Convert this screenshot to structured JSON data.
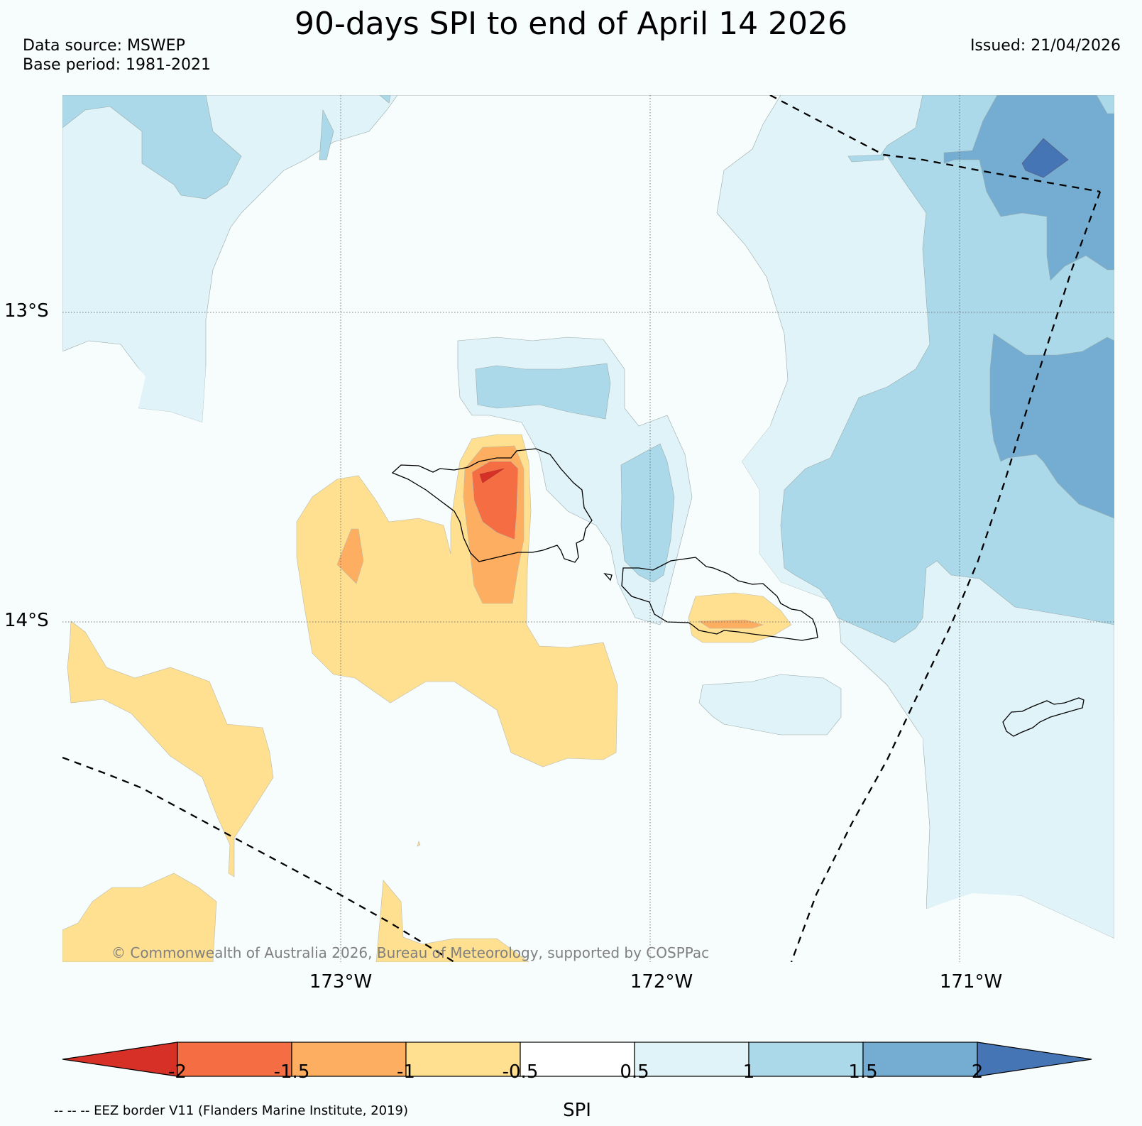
{
  "title": "90-days SPI to end of April 14 2026",
  "data_source": "Data source: MSWEP",
  "base_period": "Base period: 1981-2021",
  "issued": "Issued: 21/04/2026",
  "copyright": "© Commonwealth of Australia 2026, Bureau of Meteorology, supported by COSPPac",
  "map": {
    "lat_labels": [
      "13°S",
      "14°S"
    ],
    "lon_labels": [
      "173°W",
      "172°W",
      "171°W"
    ],
    "region": "Samoa",
    "boundary_style": "dashed"
  },
  "colorbar": {
    "label": "SPI",
    "ticks": [
      "-2",
      "-1.5",
      "-1",
      "-0.5",
      "0.5",
      "1",
      "1.5",
      "2"
    ],
    "classes": [
      {
        "range": "< -2",
        "color": "#d73027"
      },
      {
        "range": "-2 to -1.5",
        "color": "#f46d43"
      },
      {
        "range": "-1.5 to -1",
        "color": "#fdae61"
      },
      {
        "range": "-1 to -0.5",
        "color": "#fee090"
      },
      {
        "range": "-0.5 to 0.5",
        "color": "#ffffff"
      },
      {
        "range": "0.5 to 1",
        "color": "#e0f3f8"
      },
      {
        "range": "1 to 1.5",
        "color": "#abd9e9"
      },
      {
        "range": "1.5 to 2",
        "color": "#74add1"
      },
      {
        "range": "> 2",
        "color": "#4575b4"
      }
    ]
  },
  "legend_note": "-- -- -- EEZ border V11 (Flanders Marine Institute, 2019)"
}
